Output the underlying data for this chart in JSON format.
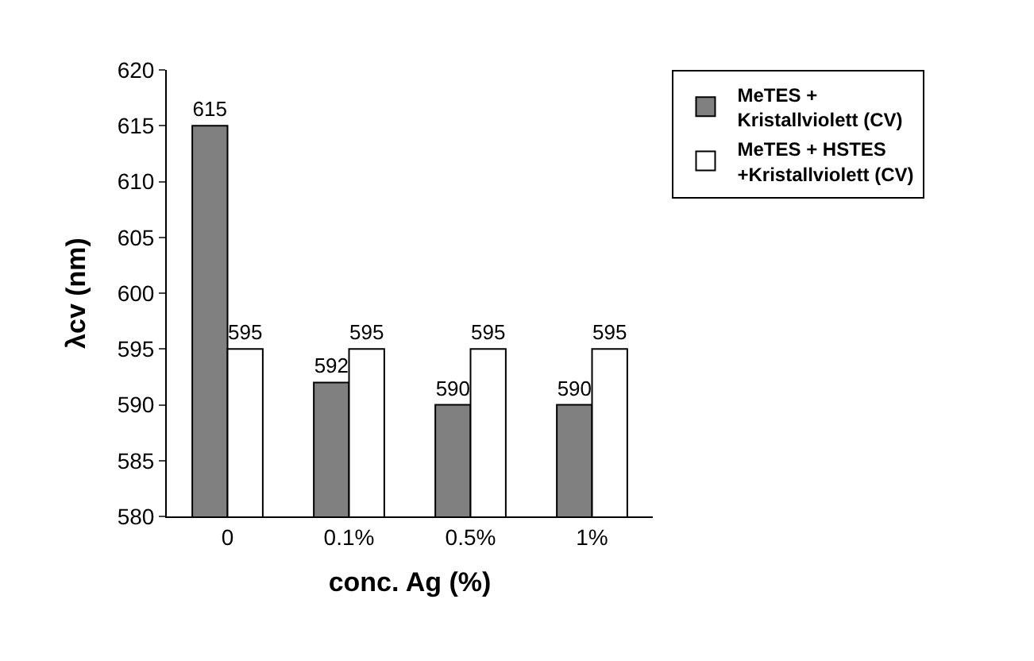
{
  "chart_data": {
    "type": "bar",
    "xlabel": "conc. Ag (%)",
    "ylabel": "λcv (nm)",
    "categories": [
      "0",
      "0.1%",
      "0.5%",
      "1%"
    ],
    "series": [
      {
        "name": "MeTES +\nKristallviolett (CV)",
        "color": "#808080",
        "values": [
          615,
          592,
          590,
          590
        ]
      },
      {
        "name": "MeTES + HSTES\n+Kristallviolett (CV)",
        "color": "#ffffff",
        "values": [
          595,
          595,
          595,
          595
        ]
      }
    ],
    "ylim": [
      580,
      620
    ],
    "yticks": [
      580,
      585,
      590,
      595,
      600,
      605,
      610,
      615,
      620
    ],
    "data_labels": true,
    "legend": "right"
  }
}
